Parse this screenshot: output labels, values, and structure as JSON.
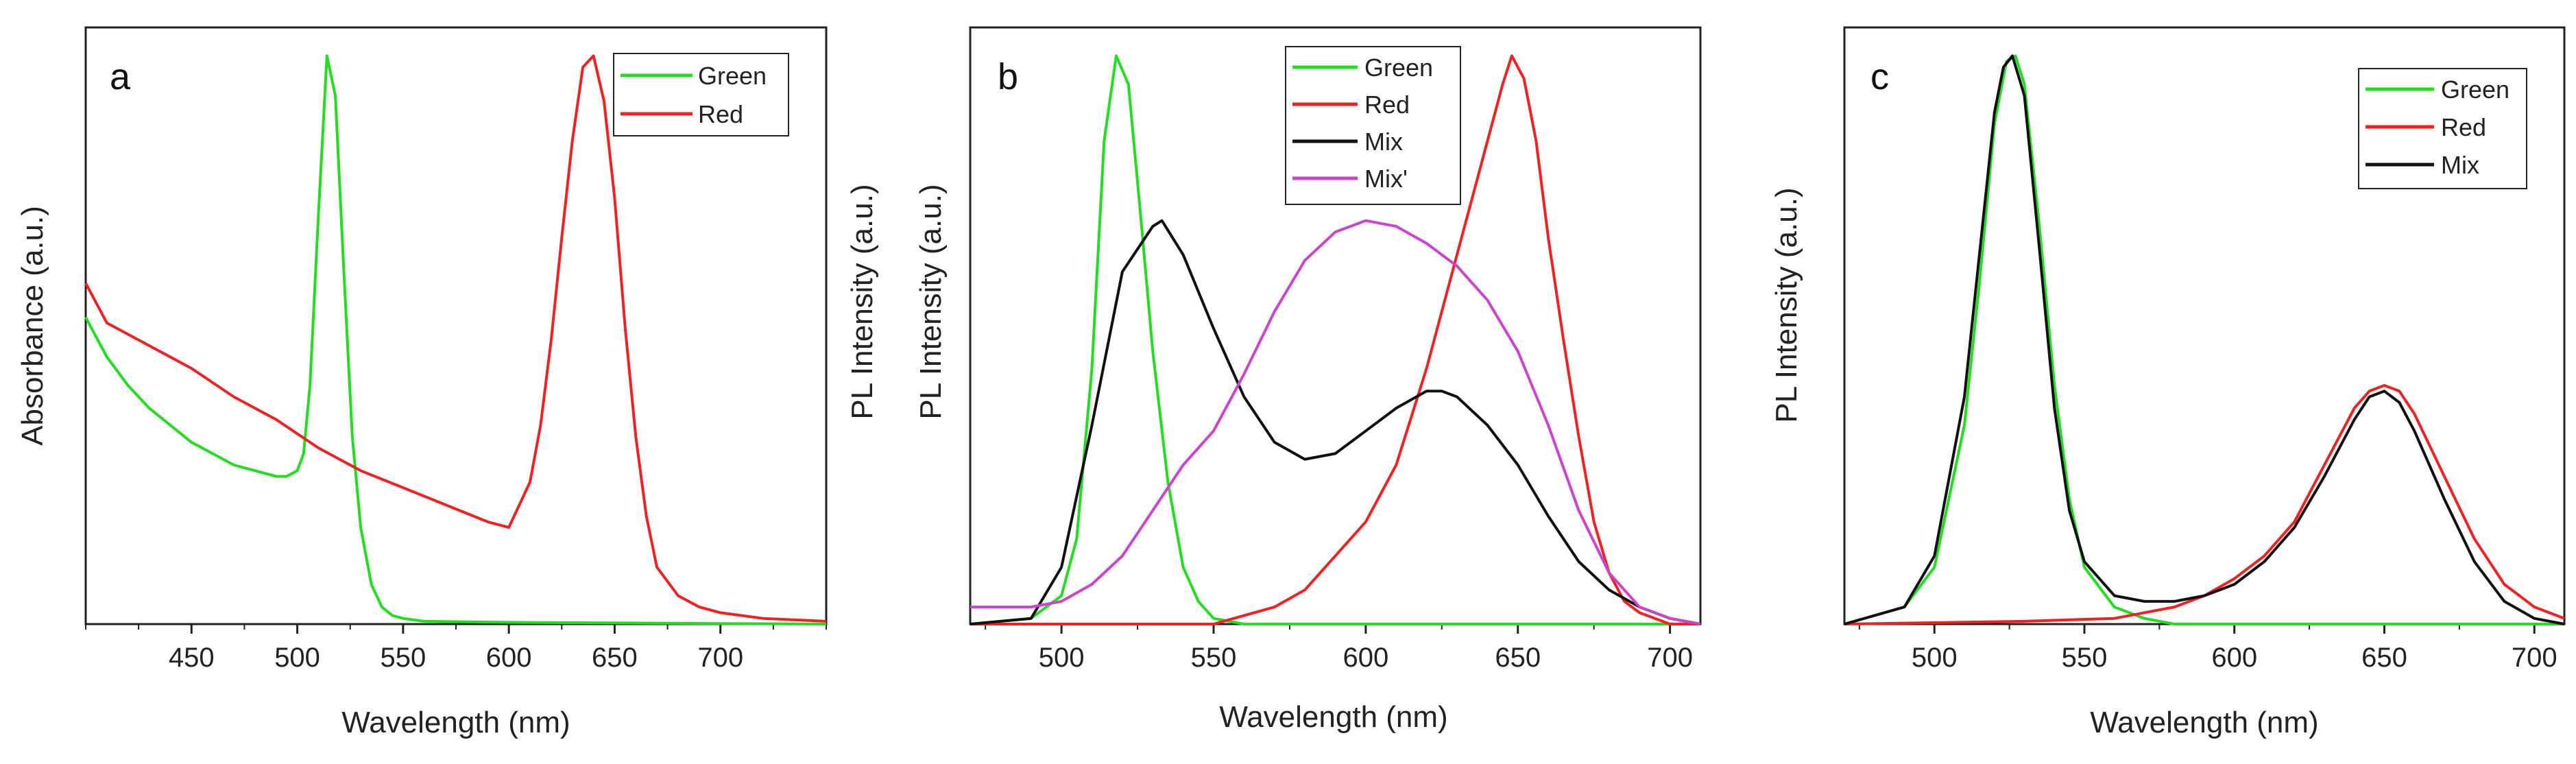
{
  "figure": {
    "panels": [
      "a",
      "b",
      "c"
    ]
  },
  "chart_data": [
    {
      "panel": "a",
      "type": "line",
      "xlabel": "Wavelength (nm)",
      "ylabel": "Absorbance (a.u.)",
      "xlim": [
        400,
        750
      ],
      "ylim": [
        0,
        1.05
      ],
      "xticks": [
        450,
        500,
        550,
        600,
        650,
        700
      ],
      "legend": "top-right",
      "series": [
        {
          "name": "Green",
          "color": "#22dd22",
          "x": [
            400,
            410,
            420,
            430,
            440,
            450,
            460,
            470,
            480,
            490,
            495,
            500,
            503,
            506,
            510,
            514,
            518,
            522,
            526,
            530,
            535,
            540,
            545,
            550,
            560,
            600,
            650,
            700,
            750
          ],
          "y": [
            0.54,
            0.47,
            0.42,
            0.38,
            0.35,
            0.32,
            0.3,
            0.28,
            0.27,
            0.26,
            0.26,
            0.27,
            0.3,
            0.42,
            0.72,
            1.0,
            0.93,
            0.62,
            0.33,
            0.17,
            0.07,
            0.03,
            0.015,
            0.01,
            0.005,
            0.003,
            0.002,
            0.001,
            0.0
          ]
        },
        {
          "name": "Red",
          "color": "#ee2222",
          "x": [
            400,
            410,
            430,
            450,
            470,
            490,
            510,
            530,
            550,
            570,
            590,
            600,
            610,
            615,
            620,
            625,
            630,
            635,
            640,
            645,
            650,
            655,
            660,
            665,
            670,
            680,
            690,
            700,
            720,
            750
          ],
          "y": [
            0.6,
            0.53,
            0.49,
            0.45,
            0.4,
            0.36,
            0.31,
            0.27,
            0.24,
            0.21,
            0.18,
            0.17,
            0.25,
            0.35,
            0.5,
            0.68,
            0.85,
            0.98,
            1.0,
            0.92,
            0.75,
            0.52,
            0.33,
            0.19,
            0.1,
            0.05,
            0.03,
            0.02,
            0.01,
            0.005
          ]
        }
      ]
    },
    {
      "panel": "b",
      "type": "line",
      "xlabel": "Wavelength (nm)",
      "ylabel": "PL Intensity (a.u.)",
      "xlim": [
        470,
        710
      ],
      "ylim": [
        0,
        1.05
      ],
      "xticks": [
        500,
        550,
        600,
        650,
        700
      ],
      "legend": "top-left-center",
      "series": [
        {
          "name": "Green",
          "color": "#22dd22",
          "x": [
            470,
            490,
            500,
            505,
            510,
            514,
            518,
            522,
            526,
            530,
            535,
            540,
            545,
            550,
            560,
            580,
            600,
            650,
            710
          ],
          "y": [
            0.0,
            0.01,
            0.05,
            0.15,
            0.45,
            0.85,
            1.0,
            0.95,
            0.72,
            0.48,
            0.25,
            0.1,
            0.04,
            0.01,
            0.0,
            0.0,
            0.0,
            0.0,
            0.0
          ]
        },
        {
          "name": "Red",
          "color": "#ee2222",
          "x": [
            470,
            550,
            570,
            580,
            590,
            600,
            610,
            620,
            630,
            640,
            645,
            648,
            652,
            656,
            660,
            665,
            670,
            675,
            680,
            685,
            690,
            700,
            710
          ],
          "y": [
            0.0,
            0.0,
            0.03,
            0.06,
            0.12,
            0.18,
            0.28,
            0.45,
            0.65,
            0.85,
            0.95,
            1.0,
            0.96,
            0.85,
            0.68,
            0.5,
            0.33,
            0.18,
            0.09,
            0.04,
            0.02,
            0.0,
            0.0
          ]
        },
        {
          "name": "Mix",
          "color": "#111111",
          "x": [
            470,
            490,
            500,
            510,
            520,
            530,
            533,
            540,
            550,
            560,
            570,
            580,
            590,
            600,
            610,
            620,
            625,
            630,
            640,
            650,
            660,
            670,
            680,
            690,
            700,
            710
          ],
          "y": [
            0.0,
            0.01,
            0.1,
            0.35,
            0.62,
            0.7,
            0.71,
            0.65,
            0.52,
            0.4,
            0.32,
            0.29,
            0.3,
            0.34,
            0.38,
            0.41,
            0.41,
            0.4,
            0.35,
            0.28,
            0.19,
            0.11,
            0.06,
            0.03,
            0.01,
            0.0
          ]
        },
        {
          "name": "Mix'",
          "color": "#cc44cc",
          "x": [
            470,
            480,
            490,
            500,
            510,
            520,
            530,
            540,
            550,
            560,
            570,
            580,
            590,
            600,
            610,
            620,
            630,
            640,
            650,
            660,
            670,
            680,
            690,
            700,
            710
          ],
          "y": [
            0.03,
            0.03,
            0.03,
            0.04,
            0.07,
            0.12,
            0.2,
            0.28,
            0.34,
            0.44,
            0.55,
            0.64,
            0.69,
            0.71,
            0.7,
            0.67,
            0.63,
            0.57,
            0.48,
            0.35,
            0.2,
            0.09,
            0.03,
            0.01,
            0.0
          ]
        }
      ]
    },
    {
      "panel": "c",
      "type": "line",
      "xlabel": "Wavelength (nm)",
      "ylabel": "PL Intensity (a.u.)",
      "xlim": [
        470,
        710
      ],
      "ylim": [
        0,
        1.05
      ],
      "xticks": [
        500,
        550,
        600,
        650,
        700
      ],
      "legend": "top-right",
      "series": [
        {
          "name": "Green",
          "color": "#22dd22",
          "x": [
            470,
            490,
            500,
            510,
            515,
            520,
            524,
            527,
            530,
            535,
            540,
            545,
            550,
            560,
            570,
            580,
            710
          ],
          "y": [
            0.0,
            0.03,
            0.1,
            0.35,
            0.6,
            0.88,
            0.99,
            1.0,
            0.95,
            0.7,
            0.42,
            0.22,
            0.1,
            0.03,
            0.01,
            0.0,
            0.0
          ]
        },
        {
          "name": "Red",
          "color": "#ee2222",
          "x": [
            470,
            530,
            560,
            580,
            590,
            600,
            610,
            620,
            630,
            640,
            645,
            650,
            655,
            660,
            670,
            680,
            690,
            700,
            710
          ],
          "y": [
            0.0,
            0.005,
            0.01,
            0.03,
            0.05,
            0.08,
            0.12,
            0.18,
            0.28,
            0.38,
            0.41,
            0.42,
            0.41,
            0.37,
            0.26,
            0.15,
            0.07,
            0.03,
            0.01
          ]
        },
        {
          "name": "Mix",
          "color": "#111111",
          "x": [
            470,
            490,
            500,
            510,
            515,
            520,
            523,
            526,
            530,
            535,
            540,
            545,
            550,
            560,
            570,
            580,
            590,
            600,
            610,
            620,
            630,
            640,
            645,
            650,
            655,
            660,
            670,
            680,
            690,
            700,
            710
          ],
          "y": [
            0.0,
            0.03,
            0.12,
            0.4,
            0.65,
            0.9,
            0.98,
            1.0,
            0.93,
            0.66,
            0.38,
            0.2,
            0.11,
            0.05,
            0.04,
            0.04,
            0.05,
            0.07,
            0.11,
            0.17,
            0.26,
            0.36,
            0.4,
            0.41,
            0.39,
            0.34,
            0.22,
            0.11,
            0.04,
            0.01,
            0.0
          ]
        }
      ]
    }
  ]
}
